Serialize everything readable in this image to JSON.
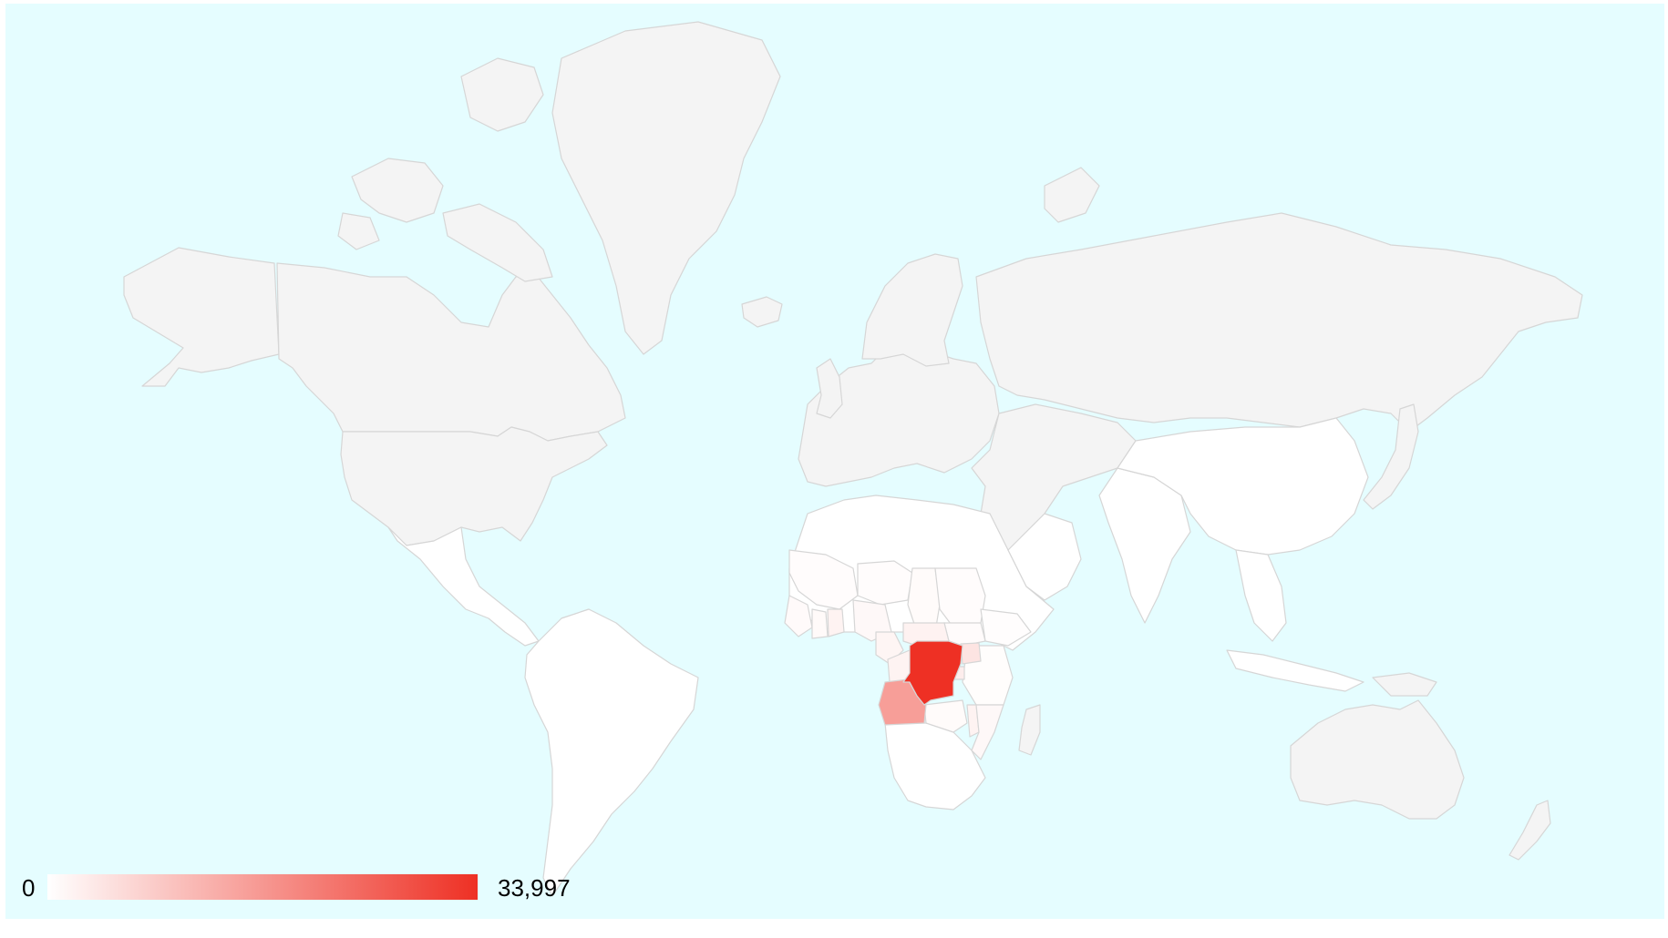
{
  "map": {
    "type": "choropleth",
    "colors": {
      "ocean": "#e5fdff",
      "no_data": "#f4f4f4",
      "border": "#d6d6d6",
      "scale_min": "#ffffff",
      "scale_max": "#ee3024"
    },
    "scale": {
      "min": 0,
      "max": 33997,
      "min_label": "0",
      "max_label": "33,997"
    },
    "regions": [
      {
        "id": "dr-congo",
        "value": 33997
      },
      {
        "id": "angola",
        "value": 16000
      },
      {
        "id": "uganda-rwanda",
        "value": 4500
      },
      {
        "id": "zambia",
        "value": 700
      },
      {
        "id": "congo-gabon",
        "value": 2000
      },
      {
        "id": "car",
        "value": 2200
      },
      {
        "id": "cameroon",
        "value": 1700
      },
      {
        "id": "nigeria",
        "value": 1100
      },
      {
        "id": "ghana",
        "value": 2000
      },
      {
        "id": "ivory-coast",
        "value": 900
      },
      {
        "id": "guinea-liberia",
        "value": 800
      },
      {
        "id": "mali",
        "value": 500
      },
      {
        "id": "niger",
        "value": 500
      },
      {
        "id": "chad",
        "value": 700
      },
      {
        "id": "sudan",
        "value": 450
      },
      {
        "id": "south-sudan",
        "value": 600
      },
      {
        "id": "ethiopia",
        "value": 300
      },
      {
        "id": "kenya-tanzania",
        "value": 400
      },
      {
        "id": "mozambique",
        "value": 1100
      },
      {
        "id": "malawi",
        "value": 2000
      },
      {
        "id": "burundi",
        "value": 3000
      }
    ]
  }
}
